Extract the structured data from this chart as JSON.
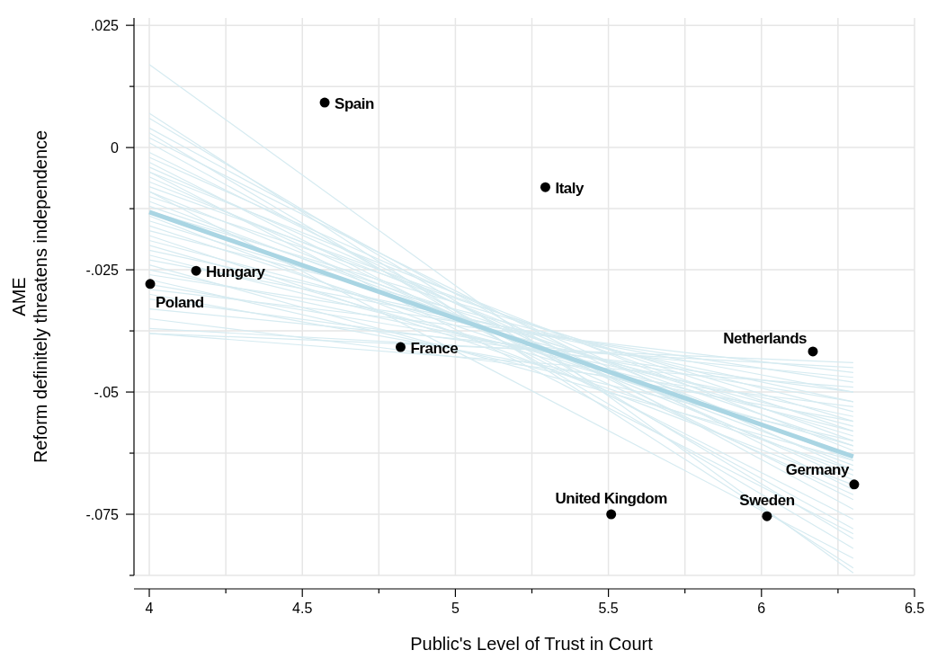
{
  "chart_data": {
    "type": "scatter",
    "xlabel": "Public's Level of Trust in Court",
    "ylabel": "AME\nReform definitely threatens independence",
    "xlim": [
      3.95,
      6.5
    ],
    "ylim": [
      -0.0875,
      0.0265
    ],
    "xticks": [
      4,
      {
        "value": 4.25,
        "label": null
      },
      4.5,
      {
        "value": 4.75,
        "label": null
      },
      5,
      {
        "value": 5.25,
        "label": null
      },
      5.5,
      {
        "value": 5.75,
        "label": null
      },
      6,
      {
        "value": 6.25,
        "label": null
      },
      6.5
    ],
    "yticks": [
      {
        "value": -0.0875,
        "label": null
      },
      {
        "value": -0.075,
        "label": "-.075"
      },
      {
        "value": -0.0625,
        "label": null
      },
      {
        "value": -0.05,
        "label": "-.05"
      },
      {
        "value": -0.0375,
        "label": null
      },
      {
        "value": -0.025,
        "label": "-.025"
      },
      {
        "value": -0.0125,
        "label": null
      },
      0,
      {
        "value": 0.0125,
        "label": null
      },
      {
        "value": 0.025,
        "label": ".025"
      }
    ],
    "grid": true,
    "series": [
      {
        "type": "line",
        "color": "#d6ebf1",
        "x": [
          4,
          6.3
        ],
        "values": [
          0.017,
          -0.087
        ]
      },
      {
        "type": "line",
        "color": "#d6ebf1",
        "x": [
          4,
          6.3
        ],
        "values": [
          0.007,
          -0.086
        ]
      },
      {
        "type": "line",
        "color": "#d6ebf1",
        "x": [
          4,
          6.3
        ],
        "values": [
          0.006,
          -0.08
        ]
      },
      {
        "type": "line",
        "color": "#d6ebf1",
        "x": [
          4,
          6.3
        ],
        "values": [
          0.004,
          -0.074
        ]
      },
      {
        "type": "line",
        "color": "#d6ebf1",
        "x": [
          4,
          6.3
        ],
        "values": [
          0.003,
          -0.082
        ]
      },
      {
        "type": "line",
        "color": "#d6ebf1",
        "x": [
          4,
          6.3
        ],
        "values": [
          0.002,
          -0.07
        ]
      },
      {
        "type": "line",
        "color": "#d6ebf1",
        "x": [
          4,
          6.3
        ],
        "values": [
          0.001,
          -0.078
        ]
      },
      {
        "type": "line",
        "color": "#d6ebf1",
        "x": [
          4,
          6.3
        ],
        "values": [
          -0.001,
          -0.072
        ]
      },
      {
        "type": "line",
        "color": "#d6ebf1",
        "x": [
          4,
          6.3
        ],
        "values": [
          -0.002,
          -0.066
        ]
      },
      {
        "type": "line",
        "color": "#d6ebf1",
        "x": [
          4,
          6.3
        ],
        "values": [
          -0.003,
          -0.076
        ]
      },
      {
        "type": "line",
        "color": "#d6ebf1",
        "x": [
          4,
          6.3
        ],
        "values": [
          -0.004,
          -0.068
        ]
      },
      {
        "type": "line",
        "color": "#d6ebf1",
        "x": [
          4,
          6.3
        ],
        "values": [
          -0.005,
          -0.062
        ]
      },
      {
        "type": "line",
        "color": "#d6ebf1",
        "x": [
          4,
          6.3
        ],
        "values": [
          -0.005,
          -0.079
        ]
      },
      {
        "type": "line",
        "color": "#d6ebf1",
        "x": [
          4,
          6.3
        ],
        "values": [
          -0.006,
          -0.071
        ]
      },
      {
        "type": "line",
        "color": "#d6ebf1",
        "x": [
          4,
          6.3
        ],
        "values": [
          -0.007,
          -0.064
        ]
      },
      {
        "type": "line",
        "color": "#d6ebf1",
        "x": [
          4,
          6.3
        ],
        "values": [
          -0.008,
          -0.06
        ]
      },
      {
        "type": "line",
        "color": "#d6ebf1",
        "x": [
          4,
          6.3
        ],
        "values": [
          -0.009,
          -0.067
        ]
      },
      {
        "type": "line",
        "color": "#d6ebf1",
        "x": [
          4,
          6.3
        ],
        "values": [
          -0.009,
          -0.084
        ]
      },
      {
        "type": "line",
        "color": "#d6ebf1",
        "x": [
          4,
          6.3
        ],
        "values": [
          -0.01,
          -0.058
        ]
      },
      {
        "type": "line",
        "color": "#d6ebf1",
        "x": [
          4,
          6.3
        ],
        "values": [
          -0.011,
          -0.065
        ]
      },
      {
        "type": "line",
        "color": "#d6ebf1",
        "x": [
          4,
          6.3
        ],
        "values": [
          -0.012,
          -0.061
        ]
      },
      {
        "type": "line",
        "color": "#d6ebf1",
        "x": [
          4,
          6.3
        ],
        "values": [
          -0.013,
          -0.056
        ]
      },
      {
        "type": "line",
        "color": "#d6ebf1",
        "x": [
          4,
          6.3
        ],
        "values": [
          -0.014,
          -0.069
        ]
      },
      {
        "type": "line",
        "color": "#d6ebf1",
        "x": [
          4,
          6.3
        ],
        "values": [
          -0.015,
          -0.059
        ]
      },
      {
        "type": "line",
        "color": "#d6ebf1",
        "x": [
          4,
          6.3
        ],
        "values": [
          -0.016,
          -0.063
        ]
      },
      {
        "type": "line",
        "color": "#d6ebf1",
        "x": [
          4,
          6.3
        ],
        "values": [
          -0.017,
          -0.054
        ]
      },
      {
        "type": "line",
        "color": "#d6ebf1",
        "x": [
          4,
          6.3
        ],
        "values": [
          -0.018,
          -0.066
        ]
      },
      {
        "type": "line",
        "color": "#d6ebf1",
        "x": [
          4,
          6.3
        ],
        "values": [
          -0.019,
          -0.057
        ]
      },
      {
        "type": "line",
        "color": "#d6ebf1",
        "x": [
          4,
          6.3
        ],
        "values": [
          -0.02,
          -0.061
        ]
      },
      {
        "type": "line",
        "color": "#d6ebf1",
        "x": [
          4,
          6.3
        ],
        "values": [
          -0.021,
          -0.052
        ]
      },
      {
        "type": "line",
        "color": "#d6ebf1",
        "x": [
          4,
          6.3
        ],
        "values": [
          -0.022,
          -0.058
        ]
      },
      {
        "type": "line",
        "color": "#d6ebf1",
        "x": [
          4,
          6.3
        ],
        "values": [
          -0.023,
          -0.05
        ]
      },
      {
        "type": "line",
        "color": "#d6ebf1",
        "x": [
          4,
          6.3
        ],
        "values": [
          -0.024,
          -0.064
        ]
      },
      {
        "type": "line",
        "color": "#d6ebf1",
        "x": [
          4,
          6.3
        ],
        "values": [
          -0.025,
          -0.055
        ]
      },
      {
        "type": "line",
        "color": "#d6ebf1",
        "x": [
          4,
          6.3
        ],
        "values": [
          -0.026,
          -0.048
        ]
      },
      {
        "type": "line",
        "color": "#d6ebf1",
        "x": [
          4,
          6.3
        ],
        "values": [
          -0.027,
          -0.06
        ]
      },
      {
        "type": "line",
        "color": "#d6ebf1",
        "x": [
          4,
          6.3
        ],
        "values": [
          -0.028,
          -0.052
        ]
      },
      {
        "type": "line",
        "color": "#d6ebf1",
        "x": [
          4,
          6.3
        ],
        "values": [
          -0.029,
          -0.046
        ]
      },
      {
        "type": "line",
        "color": "#d6ebf1",
        "x": [
          4,
          6.3
        ],
        "values": [
          -0.03,
          -0.056
        ]
      },
      {
        "type": "line",
        "color": "#d6ebf1",
        "x": [
          4,
          6.3
        ],
        "values": [
          -0.031,
          -0.05
        ]
      },
      {
        "type": "line",
        "color": "#d6ebf1",
        "x": [
          4,
          6.3
        ],
        "values": [
          -0.033,
          -0.047
        ]
      },
      {
        "type": "line",
        "color": "#d6ebf1",
        "x": [
          4,
          6.3
        ],
        "values": [
          -0.035,
          -0.053
        ]
      },
      {
        "type": "line",
        "color": "#d6ebf1",
        "x": [
          4,
          6.3
        ],
        "values": [
          -0.037,
          -0.045
        ]
      },
      {
        "type": "line",
        "color": "#d6ebf1",
        "x": [
          4,
          6.3
        ],
        "values": [
          -0.038,
          -0.049
        ]
      },
      {
        "type": "line",
        "color": "#d6ebf1",
        "x": [
          4,
          6.3
        ],
        "values": [
          -0.038,
          -0.044
        ]
      },
      {
        "type": "line",
        "color": "#a9d5e3",
        "x": [
          4,
          6.3
        ],
        "values": [
          -0.0132,
          -0.0632
        ]
      },
      {
        "marker": "circle",
        "color": "#000000",
        "x": [
          4.573,
          5.294,
          4.153,
          4.003,
          4.821,
          6.168,
          6.303,
          5.509,
          6.018
        ],
        "values": [
          0.0092,
          -0.0081,
          -0.0252,
          -0.0279,
          -0.0408,
          -0.0417,
          -0.0689,
          -0.075,
          -0.0754
        ]
      }
    ],
    "annotations": [
      {
        "text": "Spain",
        "x": 4.573,
        "y": 0.0092
      },
      {
        "text": "Italy",
        "x": 5.294,
        "y": -0.0081
      },
      {
        "text": "Hungary",
        "x": 4.153,
        "y": -0.0252
      },
      {
        "text": "Poland",
        "x": 4.003,
        "y": -0.0279
      },
      {
        "text": "France",
        "x": 4.821,
        "y": -0.0408
      },
      {
        "text": "Netherlands",
        "x": 6.168,
        "y": -0.0417
      },
      {
        "text": "Germany",
        "x": 6.303,
        "y": -0.0689
      },
      {
        "text": "United Kingdom",
        "x": 5.509,
        "y": -0.075
      },
      {
        "text": "Sweden",
        "x": 6.018,
        "y": -0.0754
      }
    ]
  }
}
